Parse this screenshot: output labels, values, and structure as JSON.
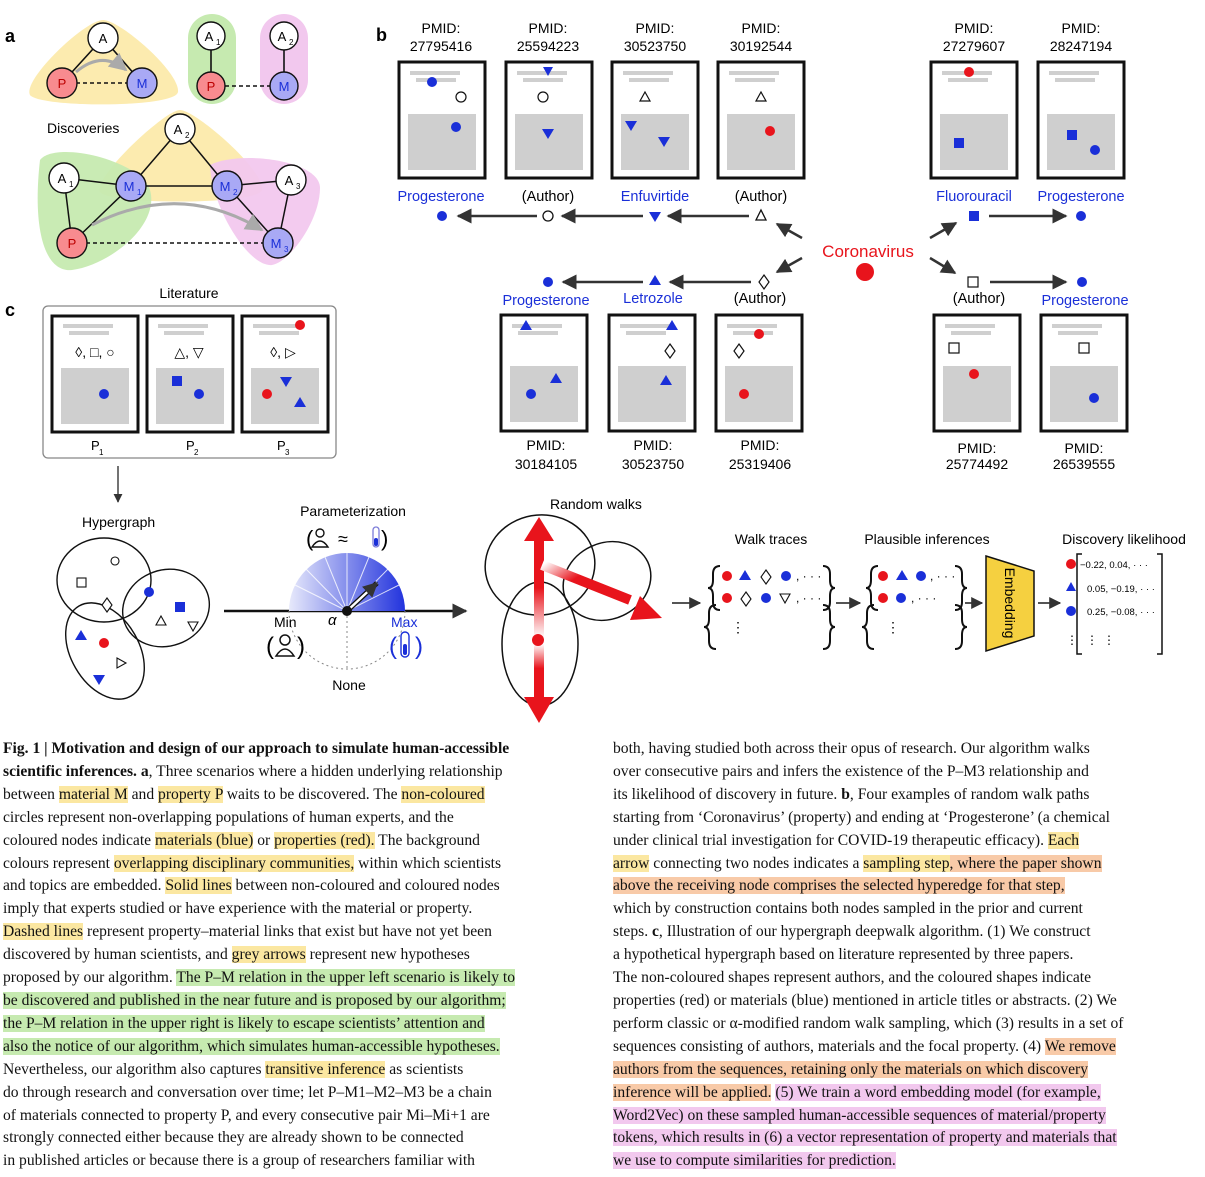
{
  "panels": {
    "a": "a",
    "b": "b",
    "c": "c"
  },
  "panel_a": {
    "node_A": "A",
    "node_P": "P",
    "node_M": "M",
    "node_A1": "A",
    "node_A2": "A",
    "node_A3": "A",
    "sub1": "1",
    "sub2": "2",
    "sub3": "3",
    "discoveries": "Discoveries"
  },
  "panel_b": {
    "center": "Coronavirus",
    "pmid_label": "PMID:",
    "top_pmids": [
      "27795416",
      "25594223",
      "30523750",
      "30192544",
      "27279607",
      "28247194"
    ],
    "top_labels": [
      "Progesterone",
      "(Author)",
      "Enfuvirtide",
      "(Author)",
      "Fluorouracil",
      "Progesterone"
    ],
    "bottom_pmids": [
      "30184105",
      "30523750",
      "25319406",
      "25774492",
      "26539555"
    ],
    "bottom_labels": [
      "Progesterone",
      "Letrozole",
      "(Author)",
      "(Author)",
      "Progesterone"
    ]
  },
  "panel_c": {
    "literature": "Literature",
    "papers": [
      "P",
      "P",
      "P"
    ],
    "paper_subs": [
      "1",
      "2",
      "3"
    ],
    "paper1_shapes": "◊, □, ○",
    "paper2_shapes": "△, ▽",
    "paper3_shapes": "◊, ▷",
    "hypergraph": "Hypergraph",
    "parameterization": "Parameterization",
    "approx": "≈",
    "alpha": "α",
    "min": "Min",
    "max": "Max",
    "none": "None",
    "random_walks": "Random walks",
    "walk_traces": "Walk traces",
    "plausible": "Plausible inferences",
    "likelihood": "Discovery likelihood",
    "embedding": "Embedding",
    "vec1": "−0.22,   0.04, · · ·",
    "vec2": "0.05,   −0.19, · · ·",
    "vec3": "0.25,   −0.08, · · ·"
  },
  "colors": {
    "red": "#e8141c",
    "blue": "#1a2fd8",
    "yellow": "#fbe7a1",
    "green": "#c6eab0",
    "orange": "#f8caa8",
    "pink": "#f2c8ee",
    "paper_grey": "#cfcfcf",
    "embed": "#f5d040"
  },
  "caption": {
    "left": [
      "Fig. 1 | Motivation and design of our approach to simulate human-accessible",
      "scientific inferences. a, Three scenarios where a hidden underlying relationship",
      "between material M and property P waits to be discovered. The non-coloured",
      "circles represent non-overlapping populations of human experts, and the",
      "coloured nodes indicate materials (blue) or properties (red). The background",
      "colours represent overlapping disciplinary communities, within which scientists",
      "and topics are embedded. Solid lines between non-coloured and coloured nodes",
      "imply that experts studied or have experience with the material or property.",
      "Dashed lines represent property–material links that exist but have not yet been",
      "discovered by human scientists, and grey arrows represent new hypotheses",
      "proposed by our algorithm. The P–M relation in the upper left scenario is likely to",
      "be discovered and published in the near future and is proposed by our algorithm;",
      "the P–M relation in the upper right is likely to escape scientists’ attention and",
      "also the notice of our algorithm, which simulates human-accessible hypotheses.",
      "Nevertheless, our algorithm also captures transitive inference as scientists",
      "do through research and conversation over time; let P–M1–M2–M3 be a chain",
      "of materials connected to property P, and every consecutive pair Mi–Mi+1 are",
      "strongly connected either because they are already shown to be connected",
      "in published articles or because there is a group of researchers familiar with"
    ],
    "right": [
      "both, having studied both across their opus of research. Our algorithm walks",
      "over consecutive pairs and infers the existence of the P–M3 relationship and",
      "its likelihood of discovery in future. b, Four examples of random walk paths",
      "starting from ‘Coronavirus’ (property) and ending at ‘Progesterone’ (a chemical",
      "under clinical trial investigation for COVID-19 therapeutic efficacy). Each",
      "arrow connecting two nodes indicates a sampling step, where the paper shown",
      "above the receiving node comprises the selected hyperedge for that step,",
      "which by construction contains both nodes sampled in the prior and current",
      "steps. c, Illustration of our hypergraph deepwalk algorithm. (1) We construct",
      "a hypothetical hypergraph based on literature represented by three papers.",
      "The non-coloured shapes represent authors, and the coloured shapes indicate",
      "properties (red) or materials (blue) mentioned in article titles or abstracts. (2) We",
      "perform classic or α-modified random walk sampling, which (3) results in a set of",
      "sequences consisting of authors, materials and the focal property. (4) We remove",
      "authors from the sequences, retaining only the materials on which discovery",
      "inference will be applied. (5) We train a word embedding model (for example,",
      "Word2Vec) on these sampled human-accessible sequences of material/property",
      "tokens, which results in (6) a vector representation of property and materials that",
      "we use to compute similarities for prediction."
    ]
  }
}
